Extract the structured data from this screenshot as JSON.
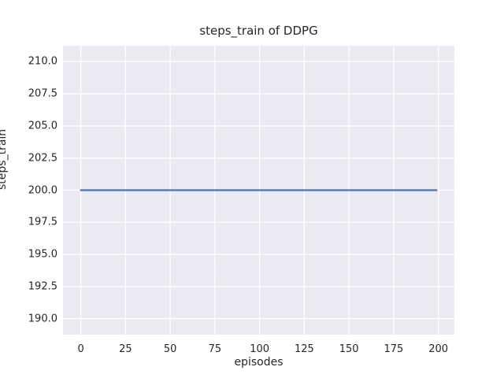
{
  "figure": {
    "title": "steps_train of DDPG",
    "xlabel": "episodes",
    "ylabel": "steps_train"
  },
  "chart_data": {
    "type": "line",
    "title": "steps_train of DDPG",
    "xlabel": "episodes",
    "ylabel": "steps_train",
    "series": [
      {
        "name": "steps_train",
        "x": [
          0,
          199
        ],
        "values": [
          200,
          200
        ]
      }
    ],
    "xlim": [
      -9.95,
      208.95
    ],
    "ylim": [
      188.75,
      211.25
    ],
    "xticks": [
      0,
      25,
      50,
      75,
      100,
      125,
      150,
      175,
      200
    ],
    "xtick_labels": [
      "0",
      "25",
      "50",
      "75",
      "100",
      "125",
      "150",
      "175",
      "200"
    ],
    "yticks": [
      190.0,
      192.5,
      195.0,
      197.5,
      200.0,
      202.5,
      205.0,
      207.5,
      210.0
    ],
    "ytick_labels": [
      "190.0",
      "192.5",
      "195.0",
      "197.5",
      "200.0",
      "202.5",
      "205.0",
      "207.5",
      "210.0"
    ],
    "grid": true,
    "legend_visible": false,
    "style": {
      "line_color": "#4c72b0",
      "plot_background": "#eaeaf2",
      "grid_color": "#ffffff",
      "text_color": "#262626",
      "figure_background": "#ffffff"
    }
  }
}
